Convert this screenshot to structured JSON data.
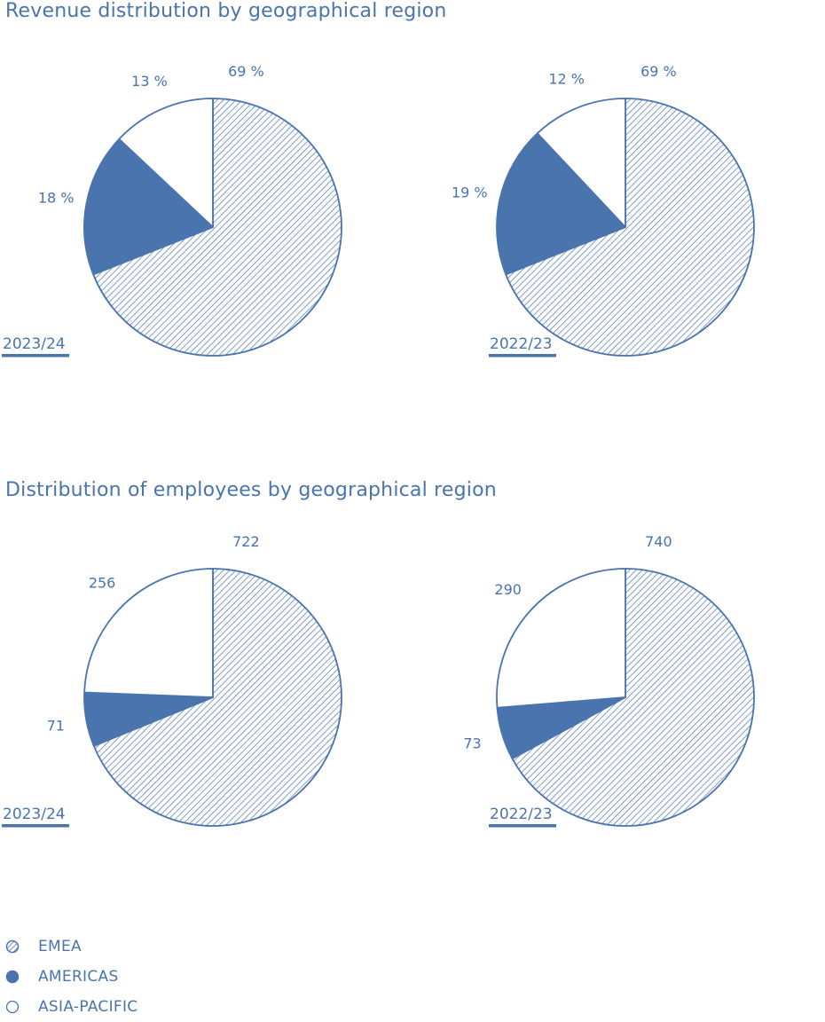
{
  "colors": {
    "accent": "#4a74ae",
    "background": "#ffffff"
  },
  "titles": {
    "revenue": "Revenue distribution by geographical region",
    "employees": "Distribution of employees by geographical region"
  },
  "legend": [
    {
      "label": "EMEA",
      "pattern": "hatched"
    },
    {
      "label": "AMERICAS",
      "pattern": "solid"
    },
    {
      "label": "ASIA-PACIFIC",
      "pattern": "empty"
    }
  ],
  "chart_data": [
    {
      "type": "pie",
      "title": "Revenue distribution by geographical region",
      "year": "2023/24",
      "categories": [
        "EMEA",
        "AMERICAS",
        "ASIA-PACIFIC"
      ],
      "values": [
        69,
        18,
        13
      ],
      "labels": [
        "69 %",
        "18 %",
        "13 %"
      ]
    },
    {
      "type": "pie",
      "title": "Revenue distribution by geographical region",
      "year": "2022/23",
      "categories": [
        "EMEA",
        "AMERICAS",
        "ASIA-PACIFIC"
      ],
      "values": [
        69,
        19,
        12
      ],
      "labels": [
        "69 %",
        "19 %",
        "12 %"
      ]
    },
    {
      "type": "pie",
      "title": "Distribution of employees by geographical region",
      "year": "2023/24",
      "categories": [
        "EMEA",
        "AMERICAS",
        "ASIA-PACIFIC"
      ],
      "values": [
        722,
        71,
        256
      ],
      "labels": [
        "722",
        "71",
        "256"
      ]
    },
    {
      "type": "pie",
      "title": "Distribution of employees by geographical region",
      "year": "2022/23",
      "categories": [
        "EMEA",
        "AMERICAS",
        "ASIA-PACIFIC"
      ],
      "values": [
        740,
        73,
        290
      ],
      "labels": [
        "740",
        "73",
        "290"
      ]
    }
  ]
}
